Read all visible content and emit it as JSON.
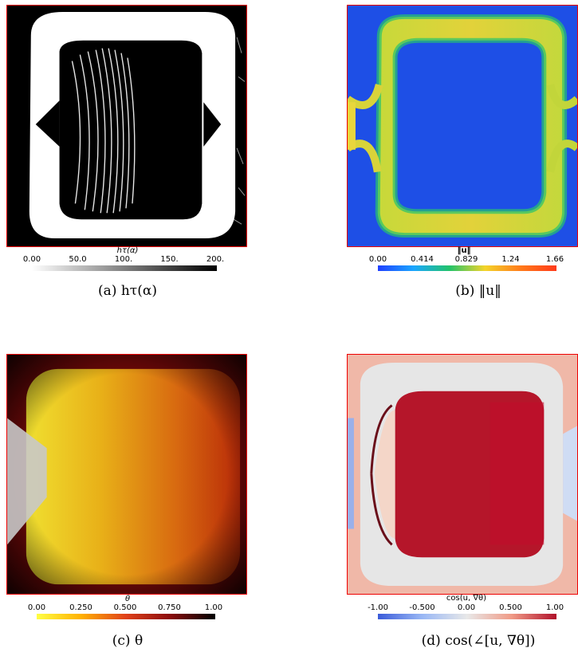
{
  "panels": [
    {
      "id": "a",
      "colorbar_title": "hτ(α)",
      "ticks": [
        "0.00",
        "50.0",
        "100.",
        "150.",
        "200."
      ],
      "caption": "(a) hτ(α)"
    },
    {
      "id": "b",
      "colorbar_title": "‖u‖",
      "ticks": [
        "0.00",
        "0.414",
        "0.829",
        "1.24",
        "1.66"
      ],
      "caption": "(b) ‖u‖"
    },
    {
      "id": "c",
      "colorbar_title": "θ",
      "ticks": [
        "0.00",
        "0.250",
        "0.500",
        "0.750",
        "1.00"
      ],
      "caption": "(c) θ"
    },
    {
      "id": "d",
      "colorbar_title": "cos(u, ∇θ)",
      "ticks": [
        "-1.00",
        "-0.500",
        "0.00",
        "0.500",
        "1.00"
      ],
      "caption": "(d) cos(∠[u, ∇θ])"
    }
  ],
  "colormaps": {
    "a": "linear-gradient(to right, #ffffff, #000000)",
    "b": "linear-gradient(to right, #1f3fff, #1aa6ff, #22c36a, #f4d42a, #ff7a1a, #ff3a1a)",
    "c": "linear-gradient(to right, #ffff44, #ffb000, #e0401a, #8a0c0c, #000000)",
    "d": "linear-gradient(to right, #3a5bd9, #9ab8f5, #e8e8e8, #f09a86, #b0102a)"
  }
}
